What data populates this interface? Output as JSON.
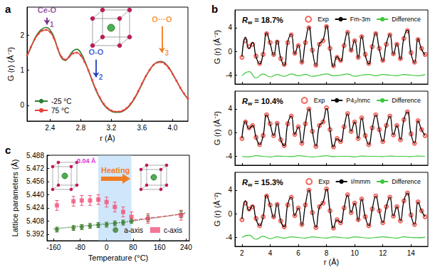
{
  "chart_data": [
    {
      "panel": "a",
      "type": "line",
      "x_label": "r (Å)",
      "y_label": "G (r) (Å⁻²)",
      "xlim": [
        2.1,
        4.2
      ],
      "xticks": [
        2.4,
        2.8,
        3.2,
        3.6,
        {
          "value": 4,
          "label": "4.0"
        }
      ],
      "ylim": [
        -0.45,
        2.8
      ],
      "yticks": [
        0,
        1,
        2
      ],
      "grid": false,
      "legend": "lower left",
      "x": [
        2.1,
        2.15,
        2.2,
        2.25,
        2.3,
        2.35,
        2.4,
        2.45,
        2.5,
        2.55,
        2.6,
        2.65,
        2.7,
        2.75,
        2.8,
        2.85,
        2.9,
        2.95,
        3,
        3.05,
        3.1,
        3.15,
        3.2,
        3.25,
        3.3,
        3.35,
        3.4,
        3.45,
        3.5,
        3.55,
        3.6,
        3.65,
        3.7,
        3.75,
        3.8,
        3.85,
        3.9,
        3.95,
        4,
        4.05,
        4.1,
        4.15,
        4.2
      ],
      "series": [
        {
          "name": "-25 °C",
          "color": "#2e7d32",
          "line_style": "solid",
          "values": [
            1.4,
            1.65,
            1.9,
            2.08,
            2.18,
            2.22,
            2.15,
            1.95,
            1.62,
            1.35,
            1.28,
            1.4,
            1.55,
            1.6,
            1.5,
            1.28,
            1.0,
            0.7,
            0.42,
            0.2,
            0.02,
            -0.1,
            -0.17,
            -0.2,
            -0.2,
            -0.17,
            -0.1,
            0.02,
            0.18,
            0.38,
            0.6,
            0.82,
            1.0,
            1.15,
            1.23,
            1.25,
            1.2,
            1.08,
            0.9,
            0.7,
            0.5,
            0.32,
            0.18
          ]
        },
        {
          "name": "75 °C",
          "color": "#e8413a",
          "line_style": "solid",
          "marker": "circle",
          "values": [
            1.42,
            1.66,
            1.88,
            2.04,
            2.13,
            2.15,
            2.09,
            1.91,
            1.62,
            1.38,
            1.3,
            1.38,
            1.48,
            1.5,
            1.42,
            1.24,
            1.0,
            0.72,
            0.45,
            0.22,
            0.04,
            -0.08,
            -0.15,
            -0.18,
            -0.18,
            -0.15,
            -0.08,
            0.04,
            0.2,
            0.4,
            0.62,
            0.83,
            1.01,
            1.15,
            1.22,
            1.23,
            1.18,
            1.06,
            0.89,
            0.7,
            0.5,
            0.33,
            0.19
          ]
        }
      ],
      "annotations": [
        {
          "text": "Ce-O",
          "number": "1",
          "x": 2.36,
          "y": 2.5,
          "y_end": 2.3,
          "color": "#7b2d8e"
        },
        {
          "text": "O-O",
          "number": "2",
          "x": 3.0,
          "y": 1.3,
          "y_end": 0.8,
          "color": "#1f3cc0"
        },
        {
          "text": "O···O",
          "number": "3",
          "x": 3.86,
          "y": 2.25,
          "y_end": 1.5,
          "color": "#f07d22"
        }
      ]
    },
    {
      "panel": "b",
      "type": "line",
      "x_label": "r (Å)",
      "y_label": "G (r) (Å⁻²)",
      "xlim": [
        1.5,
        15.2
      ],
      "xticks": [
        2,
        4,
        6,
        8,
        10,
        12,
        14
      ],
      "ylim": [
        -5.5,
        7
      ],
      "yticks": [
        -4,
        0,
        4
      ],
      "grid": false,
      "legend": "upper right",
      "x": [
        2,
        2.25,
        2.5,
        2.75,
        3,
        3.25,
        3.5,
        3.75,
        4,
        4.25,
        4.5,
        4.75,
        5,
        5.25,
        5.5,
        5.75,
        6,
        6.25,
        6.5,
        6.75,
        7,
        7.25,
        7.5,
        7.75,
        8,
        8.25,
        8.5,
        8.75,
        9,
        9.25,
        9.5,
        9.75,
        10,
        10.25,
        10.5,
        10.75,
        11,
        11.25,
        11.5,
        11.75,
        12,
        12.25,
        12.5,
        12.75,
        13,
        13.25,
        13.5,
        13.75,
        14,
        14.25,
        14.5,
        14.75,
        15
      ],
      "exp": {
        "name": "Exp",
        "color": "#f0463c",
        "marker": "open circle",
        "values": [
          -1.0,
          1.8,
          0.8,
          1.2,
          -0.8,
          -2.0,
          -0.5,
          3.0,
          1.5,
          -0.5,
          1.6,
          -1.2,
          -2.2,
          1.5,
          2.8,
          -0.3,
          1.0,
          -1.8,
          1.5,
          4.0,
          0.2,
          -2.3,
          1.2,
          1.8,
          4.2,
          0.5,
          -2.4,
          -1.0,
          -1.5,
          1.0,
          3.2,
          0.2,
          1.8,
          -1.0,
          2.5,
          -0.5,
          -2.0,
          0.8,
          3.0,
          0.5,
          -1.5,
          1.2,
          2.8,
          -0.4,
          1.2,
          -1.2,
          2.2,
          3.5,
          -0.2,
          -1.8,
          2.0,
          0.5,
          -0.5
        ]
      },
      "diff_x": [
        2,
        2.5,
        3,
        3.5,
        4,
        4.5,
        5,
        5.5,
        6,
        6.5,
        7,
        7.5,
        8,
        8.5,
        9,
        9.5,
        10,
        10.5,
        11,
        11.5,
        12,
        12.5,
        13,
        13.5,
        14,
        14.5,
        15
      ],
      "fits": [
        {
          "name": "Fm-3m",
          "rw": "Rw = 18.7%",
          "color": "#000000",
          "tick_labels": "y",
          "values": [
            -0.9,
            2.4,
            0.5,
            1.5,
            -0.9,
            -2.1,
            -0.4,
            3.1,
            1.3,
            -0.6,
            1.8,
            -1.1,
            -2.3,
            1.6,
            2.9,
            -0.4,
            1.1,
            -1.9,
            1.6,
            4.1,
            0.1,
            -2.4,
            1.3,
            1.9,
            4.3,
            0.4,
            -2.5,
            -0.9,
            -1.6,
            1.1,
            3.3,
            0.1,
            1.9,
            -1.1,
            2.6,
            -0.6,
            -2.1,
            0.9,
            3.1,
            0.4,
            -1.6,
            1.3,
            2.9,
            -0.5,
            1.3,
            -1.3,
            2.3,
            3.6,
            -0.3,
            -1.9,
            2.1,
            0.4,
            -0.6
          ],
          "difference": {
            "name": "Difference",
            "color": "#3cc83c",
            "values": [
              -4.1,
              -3.4,
              -4.5,
              -3.8,
              -4.3,
              -3.9,
              -4.2,
              -3.8,
              -4.1,
              -3.9,
              -4.2,
              -4.0,
              -3.8,
              -4.1,
              -4.0,
              -3.8,
              -4.2,
              -4.0,
              -3.9,
              -4.1,
              -3.9,
              -4.0,
              -4.1,
              -3.9,
              -4.0,
              -4.1,
              -3.9
            ]
          }
        },
        {
          "name": "P4₂/nmc",
          "rw": "Rw = 10.4%",
          "color": "#000000",
          "tick_labels": "y",
          "values": [
            -1.0,
            1.9,
            0.7,
            1.2,
            -0.8,
            -2.0,
            -0.5,
            3.0,
            1.4,
            -0.5,
            1.6,
            -1.2,
            -2.2,
            1.5,
            2.8,
            -0.3,
            1.0,
            -1.8,
            1.5,
            4.0,
            0.2,
            -2.3,
            1.2,
            1.8,
            4.1,
            0.5,
            -2.4,
            -1.0,
            -1.5,
            1.0,
            3.2,
            0.2,
            1.8,
            -1.0,
            2.5,
            -0.5,
            -2.0,
            0.8,
            3.0,
            0.5,
            -1.5,
            1.2,
            2.8,
            -0.4,
            1.2,
            -1.2,
            2.2,
            3.5,
            -0.2,
            -1.8,
            2.0,
            0.5,
            -0.5
          ],
          "difference": {
            "name": "Difference",
            "color": "#3cc83c",
            "values": [
              -4.0,
              -4.1,
              -3.9,
              -4.0,
              -4.1,
              -3.95,
              -4.0,
              -4.05,
              -3.9,
              -4.0,
              -4.1,
              -4.0,
              -3.9,
              -4.05,
              -4.0,
              -4.0,
              -4.1,
              -3.95,
              -4.0,
              -4.0,
              -4.05,
              -3.95,
              -4.0,
              -4.0,
              -4.05,
              -3.95,
              -4.0
            ]
          }
        },
        {
          "name": "I/mmm",
          "rw": "Rw = 15.3%",
          "color": "#000000",
          "values": [
            -0.9,
            2.2,
            0.6,
            1.4,
            -0.9,
            -2.0,
            -0.5,
            3.1,
            1.4,
            -0.6,
            1.7,
            -1.2,
            -2.2,
            1.6,
            2.8,
            -0.3,
            1.0,
            -1.9,
            1.5,
            4.0,
            0.2,
            -2.3,
            1.2,
            1.9,
            4.2,
            0.5,
            -2.4,
            -1.0,
            -1.5,
            1.0,
            3.2,
            0.2,
            1.8,
            -1.1,
            2.5,
            -0.5,
            -2.0,
            0.8,
            3.0,
            0.5,
            -1.5,
            1.2,
            2.8,
            -0.4,
            1.2,
            -1.2,
            2.2,
            3.5,
            -0.2,
            -1.8,
            2.0,
            0.5,
            -0.5
          ],
          "difference": {
            "name": "Difference",
            "color": "#3cc83c",
            "values": [
              -4.0,
              -3.6,
              -4.3,
              -3.8,
              -4.2,
              -3.9,
              -4.1,
              -3.9,
              -4.0,
              -4.1,
              -3.9,
              -4.0,
              -4.1,
              -3.9,
              -4.0,
              -4.1,
              -3.9,
              -4.0,
              -4.1,
              -4.0,
              -3.9,
              -4.0,
              -4.1,
              -3.9,
              -4.0,
              -4.05,
              -3.95
            ]
          }
        }
      ]
    },
    {
      "panel": "c",
      "type": "scatter",
      "x_label": "Temperature (°C)",
      "y_label": "Lattice parameters (Å)",
      "xlim": [
        -180,
        250
      ],
      "xticks": [
        -160,
        -80,
        0,
        80,
        160,
        240
      ],
      "ylim": [
        5.384,
        5.488
      ],
      "yticks": [
        5.392,
        5.408,
        5.424,
        {
          "value": 5.44,
          "label": "5.440"
        },
        5.456,
        5.472,
        5.488
      ],
      "grid": false,
      "legend": "lower right",
      "band": [
        -25,
        75
      ],
      "x": [
        -150,
        -100,
        -75,
        -50,
        -25,
        0,
        25,
        50,
        75,
        125,
        225
      ],
      "series": [
        {
          "name": "a-axis",
          "color": "#3a7d2a",
          "marker": "circle",
          "line_style": "dotted",
          "values": [
            5.3975,
            5.3995,
            5.4005,
            5.402,
            5.403,
            5.4035,
            5.405,
            5.406,
            5.408,
            5.411,
            5.416
          ],
          "errors": [
            0.003,
            0.003,
            0.003,
            0.003,
            0.003,
            0.003,
            0.003,
            0.003,
            0.003,
            0.004,
            0.004
          ],
          "fit_x": [
            -160,
            -120,
            -80,
            -40,
            0,
            40,
            80,
            120,
            160,
            200,
            240
          ],
          "fit_values": [
            5.3985,
            5.4,
            5.4015,
            5.403,
            5.4045,
            5.406,
            5.408,
            5.4105,
            5.4125,
            5.415,
            5.418
          ]
        },
        {
          "name": "c-axis",
          "color": "#f0547a",
          "marker": "square",
          "line_style": "dashed",
          "values": [
            5.427,
            5.432,
            5.433,
            5.433,
            5.434,
            5.431,
            5.425,
            5.419,
            5.413,
            5.411,
            5.415
          ],
          "errors": [
            0.006,
            0.006,
            0.006,
            0.006,
            0.006,
            0.006,
            0.006,
            0.006,
            0.006,
            0.006,
            0.006
          ],
          "fit_x": [
            80,
            120,
            160,
            200,
            240
          ],
          "fit_values": [
            5.409,
            5.411,
            5.413,
            5.415,
            5.417
          ]
        }
      ],
      "annotations": [
        {
          "text": "Heating",
          "color": "#f07d22"
        },
        {
          "text": "0.04 Å",
          "color": "#d62dd6"
        }
      ]
    }
  ]
}
